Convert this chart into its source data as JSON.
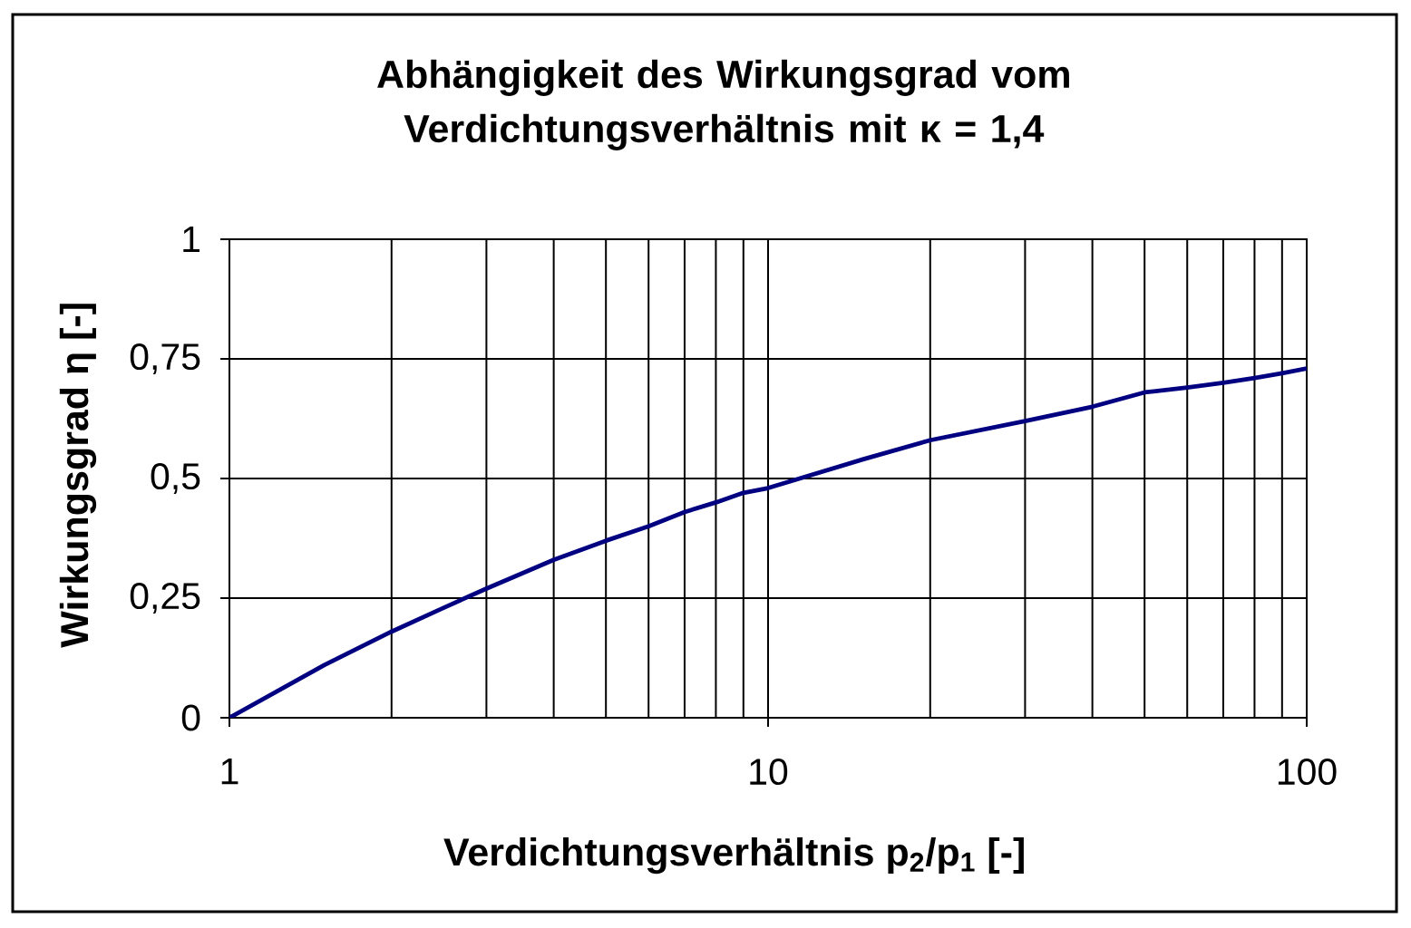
{
  "chart_data": {
    "type": "line",
    "title": "Abhängigkeit des Wirkungsgrad vom Verdichtungsverhältnis mit κ = 1,4",
    "xlabel": "Verdichtungsverhältnis p$_{2}$/p$_{1}$ [-]",
    "ylabel": "Wirkungsgrad η [-]",
    "x": [
      1,
      1.5,
      2,
      2.5,
      3,
      4,
      5,
      6,
      7,
      8,
      9,
      10,
      15,
      20,
      30,
      40,
      50,
      60,
      70,
      80,
      90,
      100
    ],
    "values": [
      0,
      0.11,
      0.18,
      0.23,
      0.27,
      0.33,
      0.37,
      0.4,
      0.43,
      0.45,
      0.47,
      0.48,
      0.54,
      0.58,
      0.62,
      0.65,
      0.68,
      0.69,
      0.7,
      0.71,
      0.72,
      0.73
    ],
    "color": "#000080",
    "log": "x",
    "xlim": [
      1,
      100
    ],
    "ylim": [
      0,
      1
    ],
    "xticks": [
      1,
      10,
      100
    ],
    "yticks": [
      0,
      {
        "value": 0.25,
        "label": "0,25"
      },
      {
        "value": 0.5,
        "label": "0,5"
      },
      {
        "value": 0.75,
        "label": "0,75"
      },
      1
    ],
    "grid": true
  }
}
